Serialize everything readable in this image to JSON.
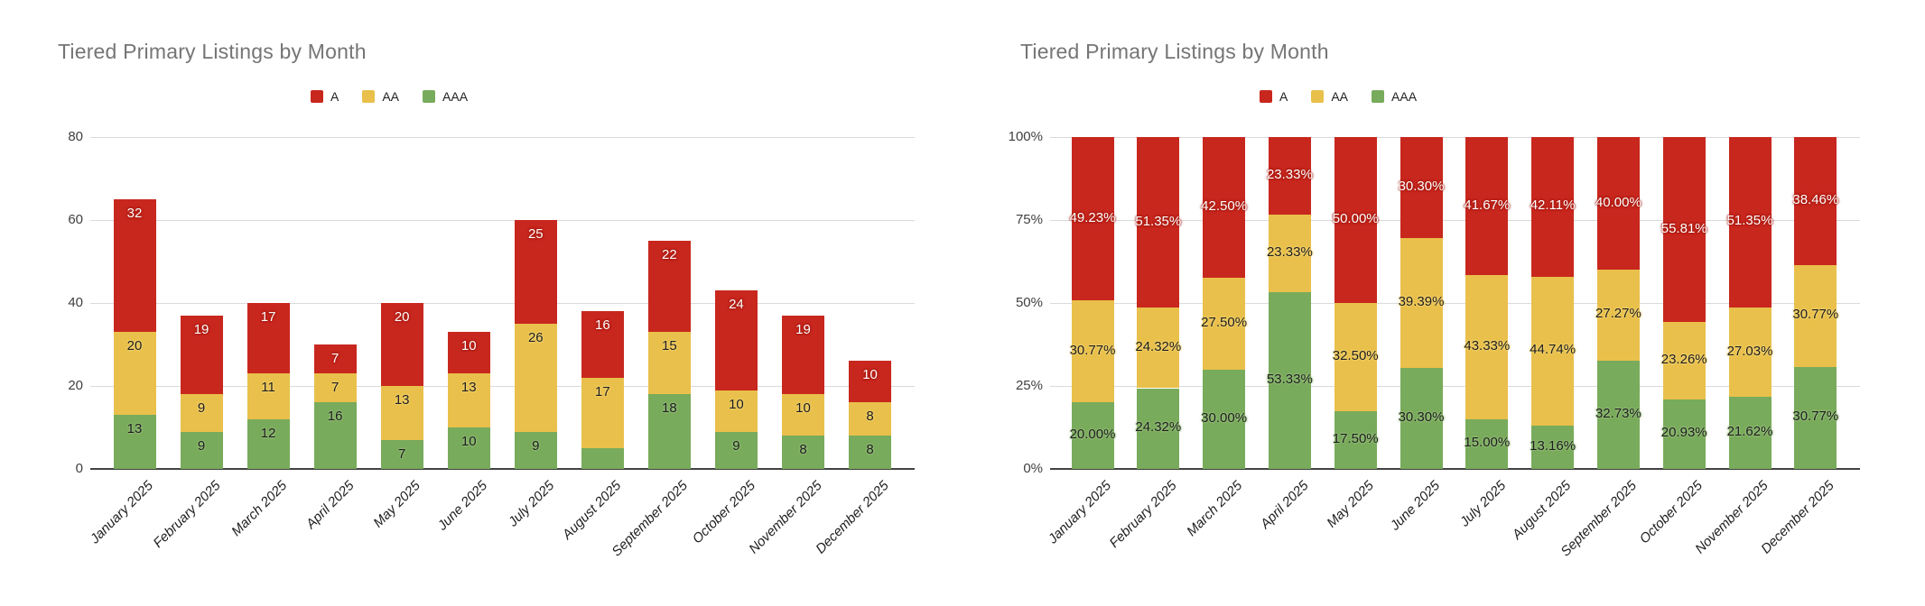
{
  "page": {
    "background": "#ffffff"
  },
  "chart_data": [
    {
      "type": "bar",
      "variant": "stacked",
      "title": "Tiered Primary Listings by Month",
      "categories": [
        "January 2025",
        "February 2025",
        "March 2025",
        "April 2025",
        "May 2025",
        "June 2025",
        "July 2025",
        "August 2025",
        "September 2025",
        "October 2025",
        "November 2025",
        "December 2025"
      ],
      "series": [
        {
          "name": "A",
          "color": "#C8271E",
          "values": [
            32,
            19,
            17,
            7,
            20,
            10,
            25,
            16,
            22,
            24,
            19,
            10
          ]
        },
        {
          "name": "AA",
          "color": "#E9C04B",
          "values": [
            20,
            9,
            11,
            7,
            13,
            13,
            26,
            17,
            15,
            10,
            10,
            8
          ]
        },
        {
          "name": "AAA",
          "color": "#78AB5B",
          "values": [
            13,
            9,
            12,
            16,
            7,
            10,
            9,
            5,
            18,
            9,
            8,
            8
          ]
        }
      ],
      "ylim": [
        0,
        80
      ],
      "yticks": [
        0,
        20,
        40,
        60,
        80
      ],
      "ytick_labels": [
        "0",
        "20",
        "40",
        "60",
        "80"
      ],
      "legend_position": "top",
      "grid": true,
      "label_format": "number"
    },
    {
      "type": "bar",
      "variant": "stacked-100",
      "title": "Tiered Primary Listings by Month",
      "categories": [
        "January 2025",
        "February 2025",
        "March 2025",
        "April 2025",
        "May 2025",
        "June 2025",
        "July 2025",
        "August 2025",
        "September 2025",
        "October 2025",
        "November 2025",
        "December 2025"
      ],
      "series": [
        {
          "name": "A",
          "color": "#C8271E",
          "values": [
            49.23,
            51.35,
            42.5,
            23.33,
            50.0,
            30.3,
            41.67,
            42.11,
            40.0,
            55.81,
            51.35,
            38.46
          ]
        },
        {
          "name": "AA",
          "color": "#E9C04B",
          "values": [
            30.77,
            24.32,
            27.5,
            23.33,
            32.5,
            39.39,
            43.33,
            44.74,
            27.27,
            23.26,
            27.03,
            30.77
          ]
        },
        {
          "name": "AAA",
          "color": "#78AB5B",
          "values": [
            20.0,
            24.32,
            30.0,
            53.33,
            17.5,
            30.3,
            15.0,
            13.16,
            32.73,
            20.93,
            21.62,
            30.77
          ]
        }
      ],
      "ylim": [
        0,
        100
      ],
      "yticks": [
        0,
        25,
        50,
        75,
        100
      ],
      "ytick_labels": [
        "0%",
        "25%",
        "50%",
        "75%",
        "100%"
      ],
      "legend_position": "top",
      "grid": true,
      "label_format": "percent"
    }
  ]
}
